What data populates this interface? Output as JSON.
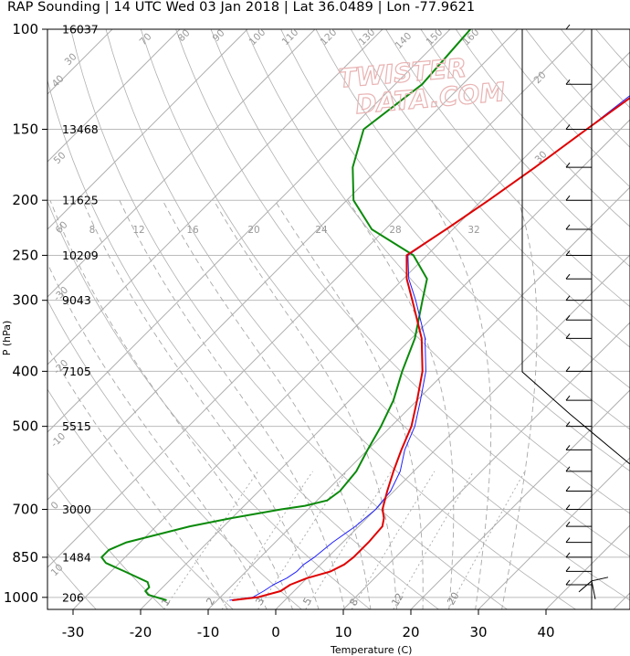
{
  "title": "RAP Sounding | 14 UTC Wed 03 Jan 2018 | Lat 36.0489 | Lon -77.9621",
  "watermark": [
    "TWISTER",
    "DATA.COM"
  ],
  "colors": {
    "temperature": "#e00000",
    "virtual_temperature": "#2020ff",
    "dewpoint": "#0a8a0a",
    "grid": "#bbbbbb",
    "isotherm": "#b0b0b0",
    "dry_adiabat": "#b0b0b0",
    "moist_adiabat": "#a8a8a8",
    "mixing_ratio": "#a8a8a8"
  },
  "chart_data": {
    "type": "line",
    "title": "",
    "xlabel": "Temperature (C)",
    "ylabel": "P (hPa)",
    "xlim": [
      -34,
      52
    ],
    "ylim": [
      1050,
      100
    ],
    "y_scale": "log",
    "x_ticks": [
      -30,
      -20,
      -10,
      0,
      10,
      20,
      30,
      40
    ],
    "y_ticks": [
      100,
      150,
      200,
      250,
      300,
      400,
      500,
      700,
      850,
      1000
    ],
    "heights": [
      {
        "p": 100,
        "label": "16037"
      },
      {
        "p": 150,
        "label": "13468"
      },
      {
        "p": 200,
        "label": "11625"
      },
      {
        "p": 250,
        "label": "10209"
      },
      {
        "p": 300,
        "label": "9043"
      },
      {
        "p": 400,
        "label": "7105"
      },
      {
        "p": 500,
        "label": "5515"
      },
      {
        "p": 700,
        "label": "3000"
      },
      {
        "p": 850,
        "label": "1484"
      },
      {
        "p": 1000,
        "label": "206"
      }
    ],
    "series": [
      {
        "key": "temperature",
        "points": [
          [
            1012,
            -7.8
          ],
          [
            1000,
            -4.5
          ],
          [
            975,
            -2.0
          ],
          [
            950,
            -1.5
          ],
          [
            925,
            0.0
          ],
          [
            900,
            2.5
          ],
          [
            875,
            3.5
          ],
          [
            850,
            3.8
          ],
          [
            800,
            3.8
          ],
          [
            750,
            3.5
          ],
          [
            725,
            2.5
          ],
          [
            700,
            1.0
          ],
          [
            650,
            -1.0
          ],
          [
            600,
            -3.0
          ],
          [
            550,
            -5.0
          ],
          [
            500,
            -7.0
          ],
          [
            450,
            -10.0
          ],
          [
            400,
            -13.5
          ],
          [
            350,
            -18.5
          ],
          [
            300,
            -25.5
          ],
          [
            275,
            -29.5
          ],
          [
            250,
            -33.0
          ],
          [
            225,
            -31.0
          ],
          [
            200,
            -29.0
          ],
          [
            175,
            -27.0
          ],
          [
            150,
            -25.0
          ],
          [
            130,
            -23.0
          ],
          [
            115,
            -21.5
          ],
          [
            100,
            -20.5
          ]
        ]
      },
      {
        "key": "virtual_temperature",
        "points": [
          [
            1012,
            -8.2
          ],
          [
            1000,
            -5.2
          ],
          [
            975,
            -4.5
          ],
          [
            950,
            -4.0
          ],
          [
            925,
            -3.0
          ],
          [
            900,
            -2.5
          ],
          [
            875,
            -2.5
          ],
          [
            850,
            -2.0
          ],
          [
            800,
            -1.5
          ],
          [
            750,
            -0.5
          ],
          [
            700,
            0.0
          ],
          [
            650,
            -0.5
          ],
          [
            600,
            -2.0
          ],
          [
            550,
            -4.5
          ],
          [
            500,
            -6.5
          ],
          [
            450,
            -9.5
          ],
          [
            400,
            -13.0
          ],
          [
            350,
            -18.0
          ],
          [
            300,
            -25.0
          ],
          [
            275,
            -29.2
          ],
          [
            250,
            -32.8
          ],
          [
            225,
            -31.0
          ],
          [
            200,
            -29.0
          ],
          [
            175,
            -27.0
          ],
          [
            150,
            -25.0
          ],
          [
            130,
            -23.5
          ],
          [
            115,
            -22.0
          ],
          [
            100,
            -21.0
          ]
        ]
      },
      {
        "key": "dewpoint",
        "points": [
          [
            1012,
            -17.5
          ],
          [
            990,
            -21.0
          ],
          [
            975,
            -22.0
          ],
          [
            960,
            -22.0
          ],
          [
            940,
            -23.0
          ],
          [
            900,
            -28.0
          ],
          [
            870,
            -32.0
          ],
          [
            850,
            -33.5
          ],
          [
            825,
            -33.5
          ],
          [
            800,
            -32.0
          ],
          [
            750,
            -25.0
          ],
          [
            725,
            -20.0
          ],
          [
            700,
            -14.0
          ],
          [
            690,
            -11.0
          ],
          [
            675,
            -8.5
          ],
          [
            650,
            -8.0
          ],
          [
            600,
            -8.5
          ],
          [
            550,
            -10.0
          ],
          [
            500,
            -11.5
          ],
          [
            450,
            -13.5
          ],
          [
            400,
            -16.5
          ],
          [
            350,
            -19.5
          ],
          [
            300,
            -24.0
          ],
          [
            275,
            -26.5
          ],
          [
            250,
            -32.0
          ],
          [
            225,
            -42.0
          ],
          [
            200,
            -49.0
          ],
          [
            175,
            -54.0
          ],
          [
            150,
            -58.0
          ],
          [
            125,
            -56.0
          ],
          [
            100,
            -57.0
          ]
        ]
      }
    ],
    "isotherm_labels": [
      "130",
      "140",
      "150",
      "160",
      "70",
      "80",
      "90",
      "100",
      "110",
      "120",
      "30",
      "40",
      "50",
      "60",
      "-30",
      "-20",
      "-10",
      "0",
      "10",
      "20",
      "30"
    ],
    "mixing_ratio_labels": [
      "1",
      "2",
      "3",
      "5",
      "8",
      "12",
      "20"
    ],
    "moist_adiabat_labels": [
      "8",
      "12",
      "16",
      "20",
      "24",
      "28",
      "32"
    ]
  }
}
